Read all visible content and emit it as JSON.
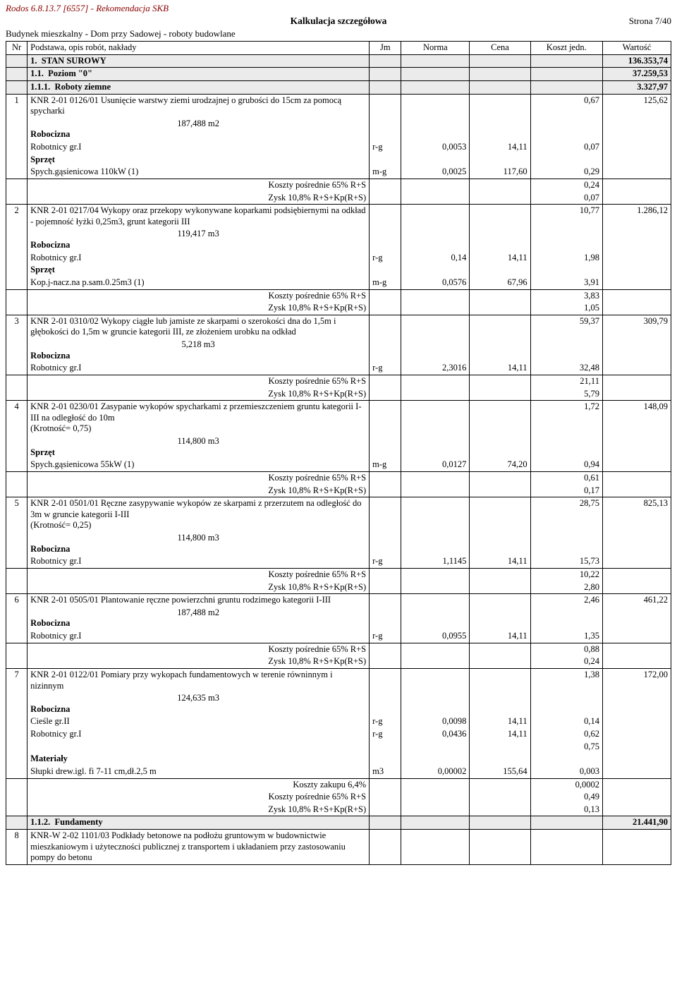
{
  "header": {
    "software_line": "Rodos 6.8.13.7 [6557] - Rekomendacja SKB",
    "title": "Kalkulacja szczegółowa",
    "page": "Strona 7/40",
    "project": "Budynek mieszkalny - Dom przy Sadowej - roboty budowlane"
  },
  "columns": {
    "nr": "Nr",
    "desc": "Podstawa, opis robót, nakłady",
    "jm": "Jm",
    "norma": "Norma",
    "cena": "Cena",
    "koszt": "Koszt jedn.",
    "wartosc": "Wartość"
  },
  "labels": {
    "robocizna": "Robocizna",
    "sprzet": "Sprzęt",
    "materialy": "Materiały",
    "kp": "Koszty pośrednie 65% R+S",
    "zysk": "Zysk 10,8% R+S+Kp(R+S)",
    "kz": "Koszty zakupu 6,4%"
  },
  "sections": {
    "s1": {
      "num": "1.",
      "title": "STAN SUROWY",
      "value": "136.353,74"
    },
    "s11": {
      "num": "1.1.",
      "title": "Poziom \"0\"",
      "value": "37.259,53"
    },
    "s111": {
      "num": "1.1.1.",
      "title": "Roboty ziemne",
      "value": "3.327,97"
    },
    "s112": {
      "num": "1.1.2.",
      "title": "Fundamenty",
      "value": "21.441,90"
    }
  },
  "items": {
    "i1": {
      "nr": "1",
      "desc": "KNR 2-01 0126/01  Usunięcie warstwy ziemi urodzajnej o grubości do 15cm za pomocą spycharki",
      "qty": "187,488  m2",
      "koszt": "0,67",
      "wartosc": "125,62",
      "rob": {
        "label": "Robotnicy gr.I",
        "jm": "r-g",
        "norma": "0,0053",
        "cena": "14,11",
        "koszt": "0,07"
      },
      "spr": {
        "label": "Spych.gąsienicowa 110kW (1)",
        "jm": "m-g",
        "norma": "0,0025",
        "cena": "117,60",
        "koszt": "0,29"
      },
      "kp": "0,24",
      "zysk": "0,07"
    },
    "i2": {
      "nr": "2",
      "desc": "KNR 2-01 0217/04  Wykopy oraz przekopy wykonywane koparkami podsiębiernymi na odkład - pojemność łyżki 0,25m3, grunt kategorii III",
      "qty": "119,417  m3",
      "koszt": "10,77",
      "wartosc": "1.286,12",
      "rob": {
        "label": "Robotnicy gr.I",
        "jm": "r-g",
        "norma": "0,14",
        "cena": "14,11",
        "koszt": "1,98"
      },
      "spr": {
        "label": "Kop.j-nacz.na p.sam.0.25m3 (1)",
        "jm": "m-g",
        "norma": "0,0576",
        "cena": "67,96",
        "koszt": "3,91"
      },
      "kp": "3,83",
      "zysk": "1,05"
    },
    "i3": {
      "nr": "3",
      "desc": "KNR 2-01 0310/02  Wykopy ciągłe lub jamiste ze skarpami o szerokości dna do 1,5m i głębokości do 1,5m w gruncie kategorii III, ze złożeniem urobku na odkład",
      "qty": "5,218  m3",
      "koszt": "59,37",
      "wartosc": "309,79",
      "rob": {
        "label": "Robotnicy gr.I",
        "jm": "r-g",
        "norma": "2,3016",
        "cena": "14,11",
        "koszt": "32,48"
      },
      "kp": "21,11",
      "zysk": "5,79"
    },
    "i4": {
      "nr": "4",
      "desc": "KNR 2-01 0230/01  Zasypanie wykopów spycharkami z przemieszczeniem gruntu kategorii I-III na odległość do 10m",
      "mult": " (Krotność= 0,75)",
      "qty": "114,800  m3",
      "koszt": "1,72",
      "wartosc": "148,09",
      "spr": {
        "label": "Spych.gąsienicowa 55kW  (1)",
        "jm": "m-g",
        "norma": "0,0127",
        "cena": "74,20",
        "koszt": "0,94"
      },
      "kp": "0,61",
      "zysk": "0,17"
    },
    "i5": {
      "nr": "5",
      "desc": "KNR 2-01 0501/01  Ręczne zasypywanie wykopów ze skarpami z przerzutem na odległość do 3m w gruncie kategorii I-III",
      "mult": " (Krotność= 0,25)",
      "qty": "114,800  m3",
      "koszt": "28,75",
      "wartosc": "825,13",
      "rob": {
        "label": "Robotnicy gr.I",
        "jm": "r-g",
        "norma": "1,1145",
        "cena": "14,11",
        "koszt": "15,73"
      },
      "kp": "10,22",
      "zysk": "2,80"
    },
    "i6": {
      "nr": "6",
      "desc": "KNR 2-01 0505/01  Plantowanie ręczne powierzchni gruntu rodzimego kategorii I-III",
      "qty": "187,488  m2",
      "koszt": "2,46",
      "wartosc": "461,22",
      "rob": {
        "label": "Robotnicy gr.I",
        "jm": "r-g",
        "norma": "0,0955",
        "cena": "14,11",
        "koszt": "1,35"
      },
      "kp": "0,88",
      "zysk": "0,24"
    },
    "i7": {
      "nr": "7",
      "desc": "KNR 2-01 0122/01  Pomiary przy wykopach fundamentowych w terenie równinnym i nizinnym",
      "qty": "124,635  m3",
      "koszt": "1,38",
      "wartosc": "172,00",
      "rob1": {
        "label": "Cieśle gr.II",
        "jm": "r-g",
        "norma": "0,0098",
        "cena": "14,11",
        "koszt": "0,14"
      },
      "rob2": {
        "label": "Robotnicy gr.I",
        "jm": "r-g",
        "norma": "0,0436",
        "cena": "14,11",
        "koszt": "0,62"
      },
      "rob_sum": "0,75",
      "mat": {
        "label": "Słupki drew.igl. fi 7-11 cm,dł.2,5 m",
        "jm": "m3",
        "norma": "0,00002",
        "cena": "155,64",
        "koszt": "0,003"
      },
      "kz": "0,0002",
      "kp": "0,49",
      "zysk": "0,13"
    },
    "i8": {
      "nr": "8",
      "desc": "KNR-W 2-02 1101/03  Podkłady betonowe na podłożu gruntowym w budownictwie mieszkaniowym i użyteczności publicznej z transportem i układaniem przy zastosowaniu pompy do betonu"
    }
  }
}
